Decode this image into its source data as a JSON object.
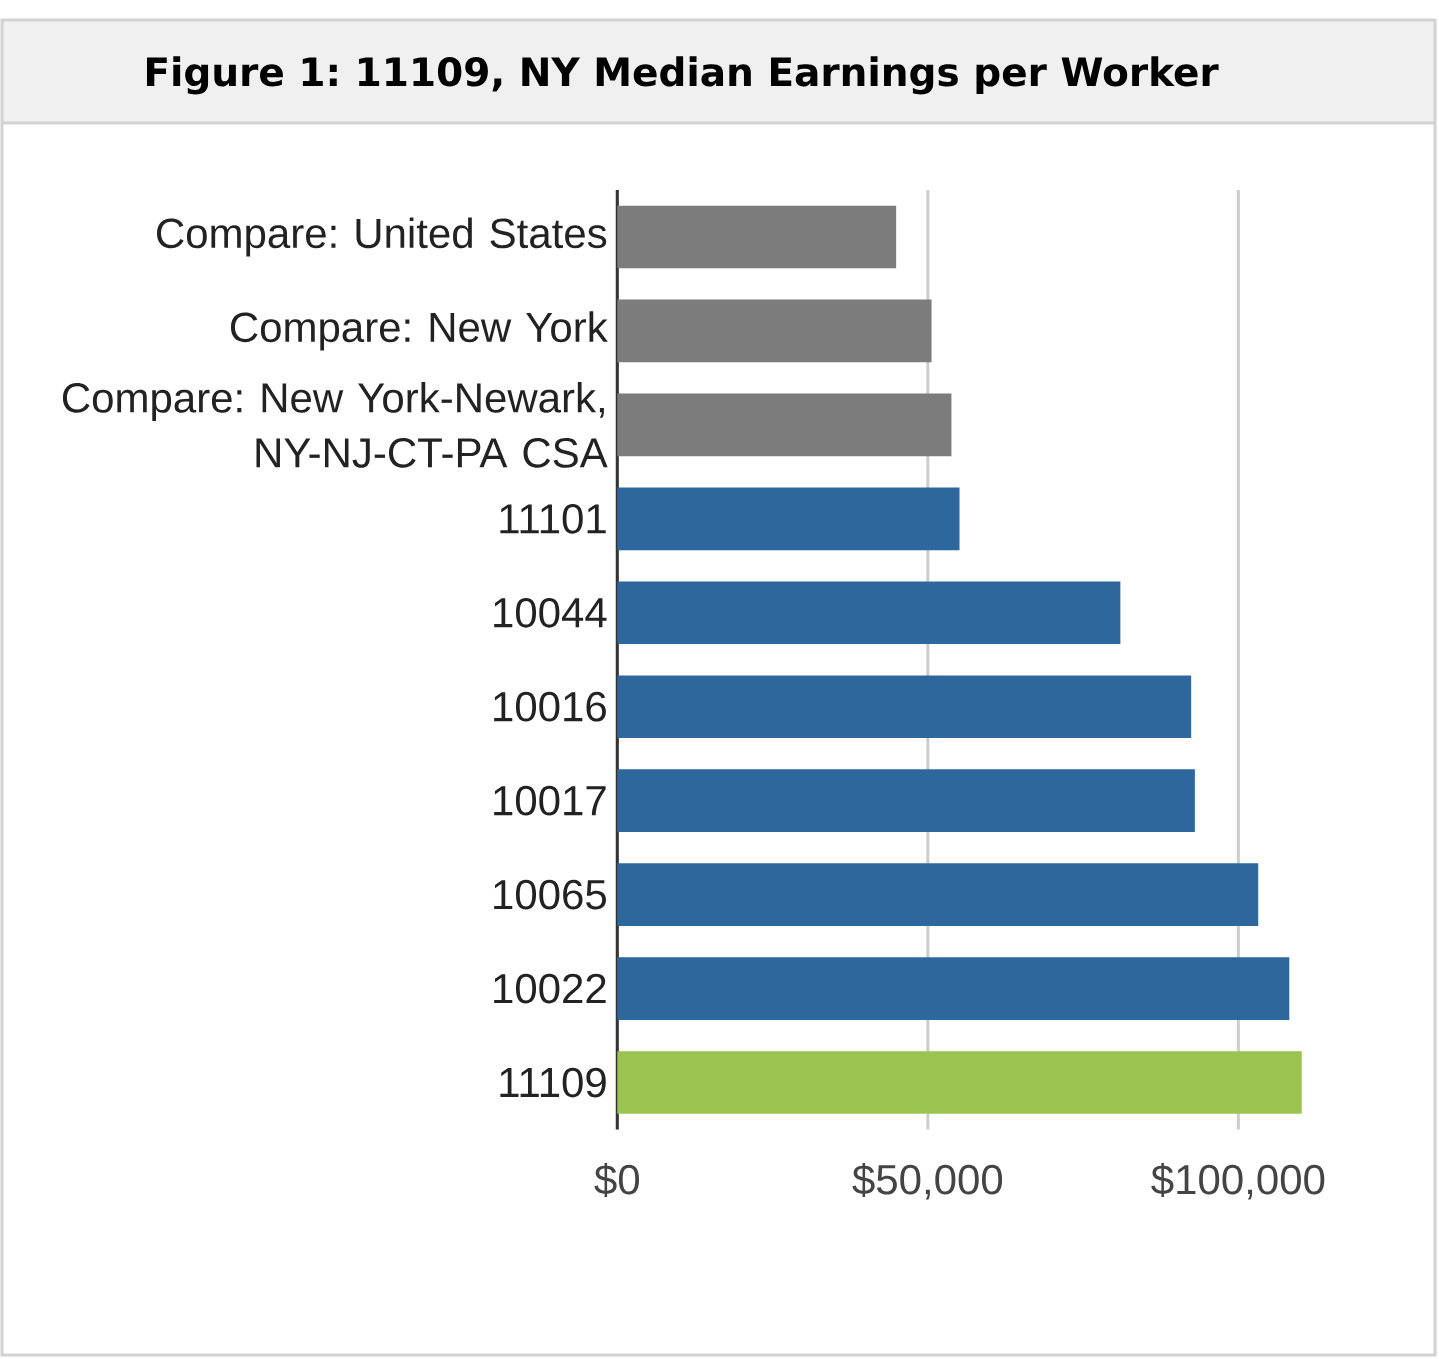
{
  "chart_data": {
    "type": "bar",
    "orientation": "horizontal",
    "title": "Figure 1: 11109, NY Median Earnings per Worker",
    "categories": [
      "Compare: United States",
      "Compare: New York",
      "Compare: New York-Newark, NY-NJ-CT-PA CSA",
      "11101",
      "10044",
      "10016",
      "10017",
      "10065",
      "10022",
      "11109"
    ],
    "values": [
      44900,
      50600,
      53800,
      55100,
      81000,
      92400,
      93000,
      103200,
      108200,
      110200
    ],
    "colors": [
      "#7d7c7d",
      "#7d7c7d",
      "#7d7c7d",
      "#2e679c",
      "#2e679c",
      "#2e679c",
      "#2e679c",
      "#2e679c",
      "#2e679c",
      "#9bc350"
    ],
    "xlim": [
      0,
      110200
    ],
    "xticks": [
      {
        "value": 0,
        "label": "$0"
      },
      {
        "value": 50000,
        "label": "$50,000"
      },
      {
        "value": 100000,
        "label": "$100,000"
      }
    ],
    "grid": "x"
  }
}
